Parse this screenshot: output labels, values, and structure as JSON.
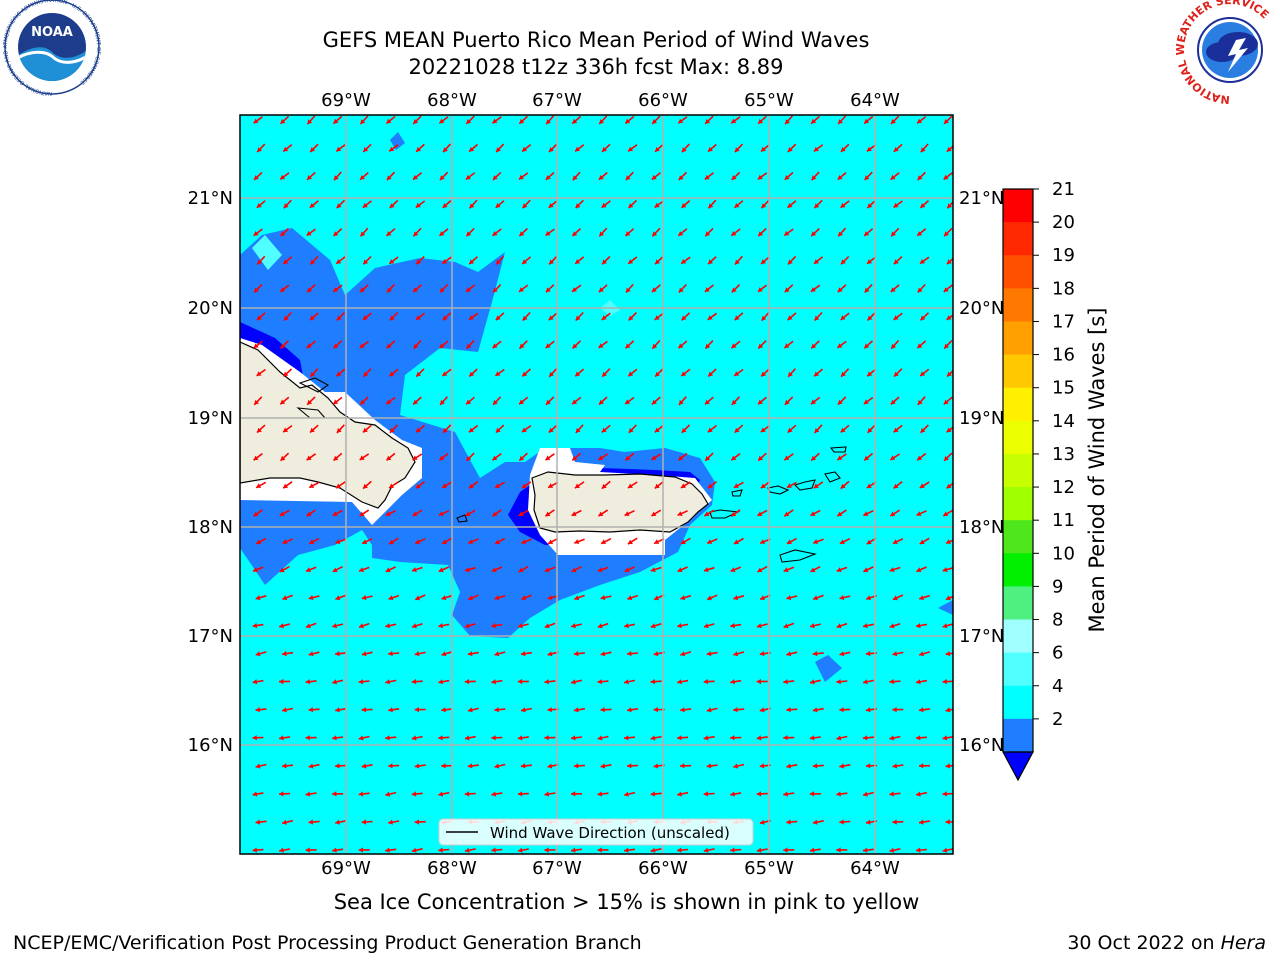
{
  "title_line1": "GEFS MEAN Puerto Rico Mean Period of Wind Waves",
  "title_line2": "20221028 t12z 336h fcst   Max: 8.89",
  "lon_ticks": [
    "69°W",
    "68°W",
    "67°W",
    "66°W",
    "65°W",
    "64°W"
  ],
  "lat_ticks": [
    "21°N",
    "20°N",
    "19°N",
    "18°N",
    "17°N",
    "16°N"
  ],
  "legend_label": "Wind Wave Direction (unscaled)",
  "colorbar": {
    "title": "Mean Period of Wind Waves [s]",
    "ticks": [
      "21",
      "20",
      "19",
      "18",
      "17",
      "16",
      "15",
      "14",
      "13",
      "12",
      "11",
      "10",
      "9",
      "8",
      "6",
      "4",
      "2"
    ],
    "colors": [
      "#ff0000",
      "#ff2800",
      "#ff5000",
      "#ff7800",
      "#ffa000",
      "#ffc800",
      "#fff000",
      "#ebff00",
      "#c8ff00",
      "#a0ff00",
      "#50e61e",
      "#00f000",
      "#50f080",
      "#a0ffff",
      "#50ffff",
      "#00ffff",
      "#1e7eff"
    ],
    "under_color": "#0000ff"
  },
  "caption": "Sea Ice Concentration > 15% is shown in pink to yellow",
  "footer_left": "NCEP/EMC/Verification Post Processing Product Generation Branch",
  "footer_right_date": "30 Oct 2022 on ",
  "footer_right_machine": "Hera",
  "logos": {
    "noaa_text": "NOAA",
    "noaa_ring": "NATIONAL OCEANIC AND ATMOSPHERIC ADMINISTRATION · U.S. DEPARTMENT OF COMMERCE",
    "nws_ring": "NATIONAL WEATHER SERVICE"
  },
  "colors": {
    "ocean_light": "#00ffff",
    "ocean_mid": "#1e7eff",
    "ocean_dark": "#0000ff",
    "land": "#efedde",
    "arrow": "#ff0000",
    "grid": "#b0b0b0"
  }
}
